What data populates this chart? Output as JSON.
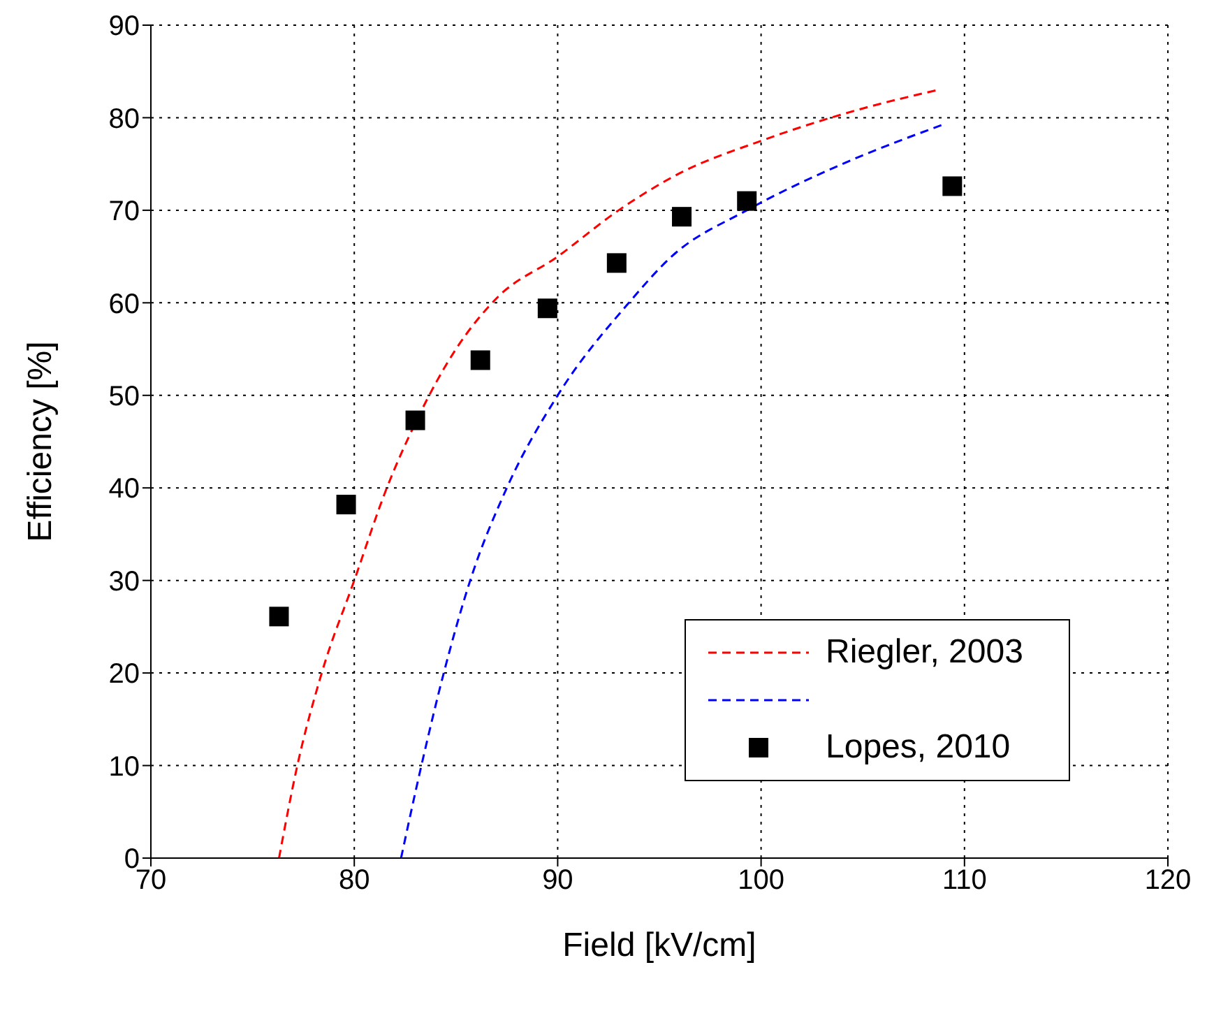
{
  "chart_data": {
    "type": "line",
    "xlabel": "Field [kV/cm]",
    "ylabel": "Efficiency [%]",
    "xlim": [
      70,
      120
    ],
    "xticks": [
      70,
      80,
      90,
      100,
      110,
      120
    ],
    "ylim": [
      0,
      90
    ],
    "yticks": [
      0,
      10,
      20,
      30,
      40,
      50,
      60,
      70,
      80,
      90
    ],
    "grid": true,
    "legend": "bottom right",
    "series": [
      {
        "name": "Riegler, 2003",
        "type": "line",
        "line_style": "dashed",
        "color": "#ff0000",
        "x": [
          76.3,
          77.2,
          78.4,
          80.0,
          81.6,
          83.0,
          85.0,
          87.0,
          90.0,
          93.0,
          96.0,
          100.0,
          105.0,
          108.7
        ],
        "values": [
          0,
          10,
          20,
          30,
          40,
          47,
          55,
          60.5,
          65,
          70,
          74,
          77.5,
          81,
          83
        ]
      },
      {
        "type": "line",
        "line_style": "dashed",
        "color": "#0000ff",
        "x": [
          82.3,
          83.3,
          84.4,
          85.7,
          87.5,
          90.0,
          93.5,
          95.6,
          99.3,
          104.0,
          109.0
        ],
        "values": [
          0,
          10,
          20,
          30,
          40,
          50,
          60,
          65,
          70,
          75,
          79.3
        ]
      },
      {
        "name": "Lopes, 2010",
        "type": "scatter",
        "marker": "square",
        "color": "#000000",
        "x": [
          76.3,
          79.6,
          83.0,
          86.2,
          89.5,
          92.9,
          96.1,
          99.3,
          109.4
        ],
        "values": [
          26.1,
          38.2,
          47.3,
          53.8,
          59.4,
          64.3,
          69.3,
          71.0,
          72.6
        ]
      }
    ]
  }
}
